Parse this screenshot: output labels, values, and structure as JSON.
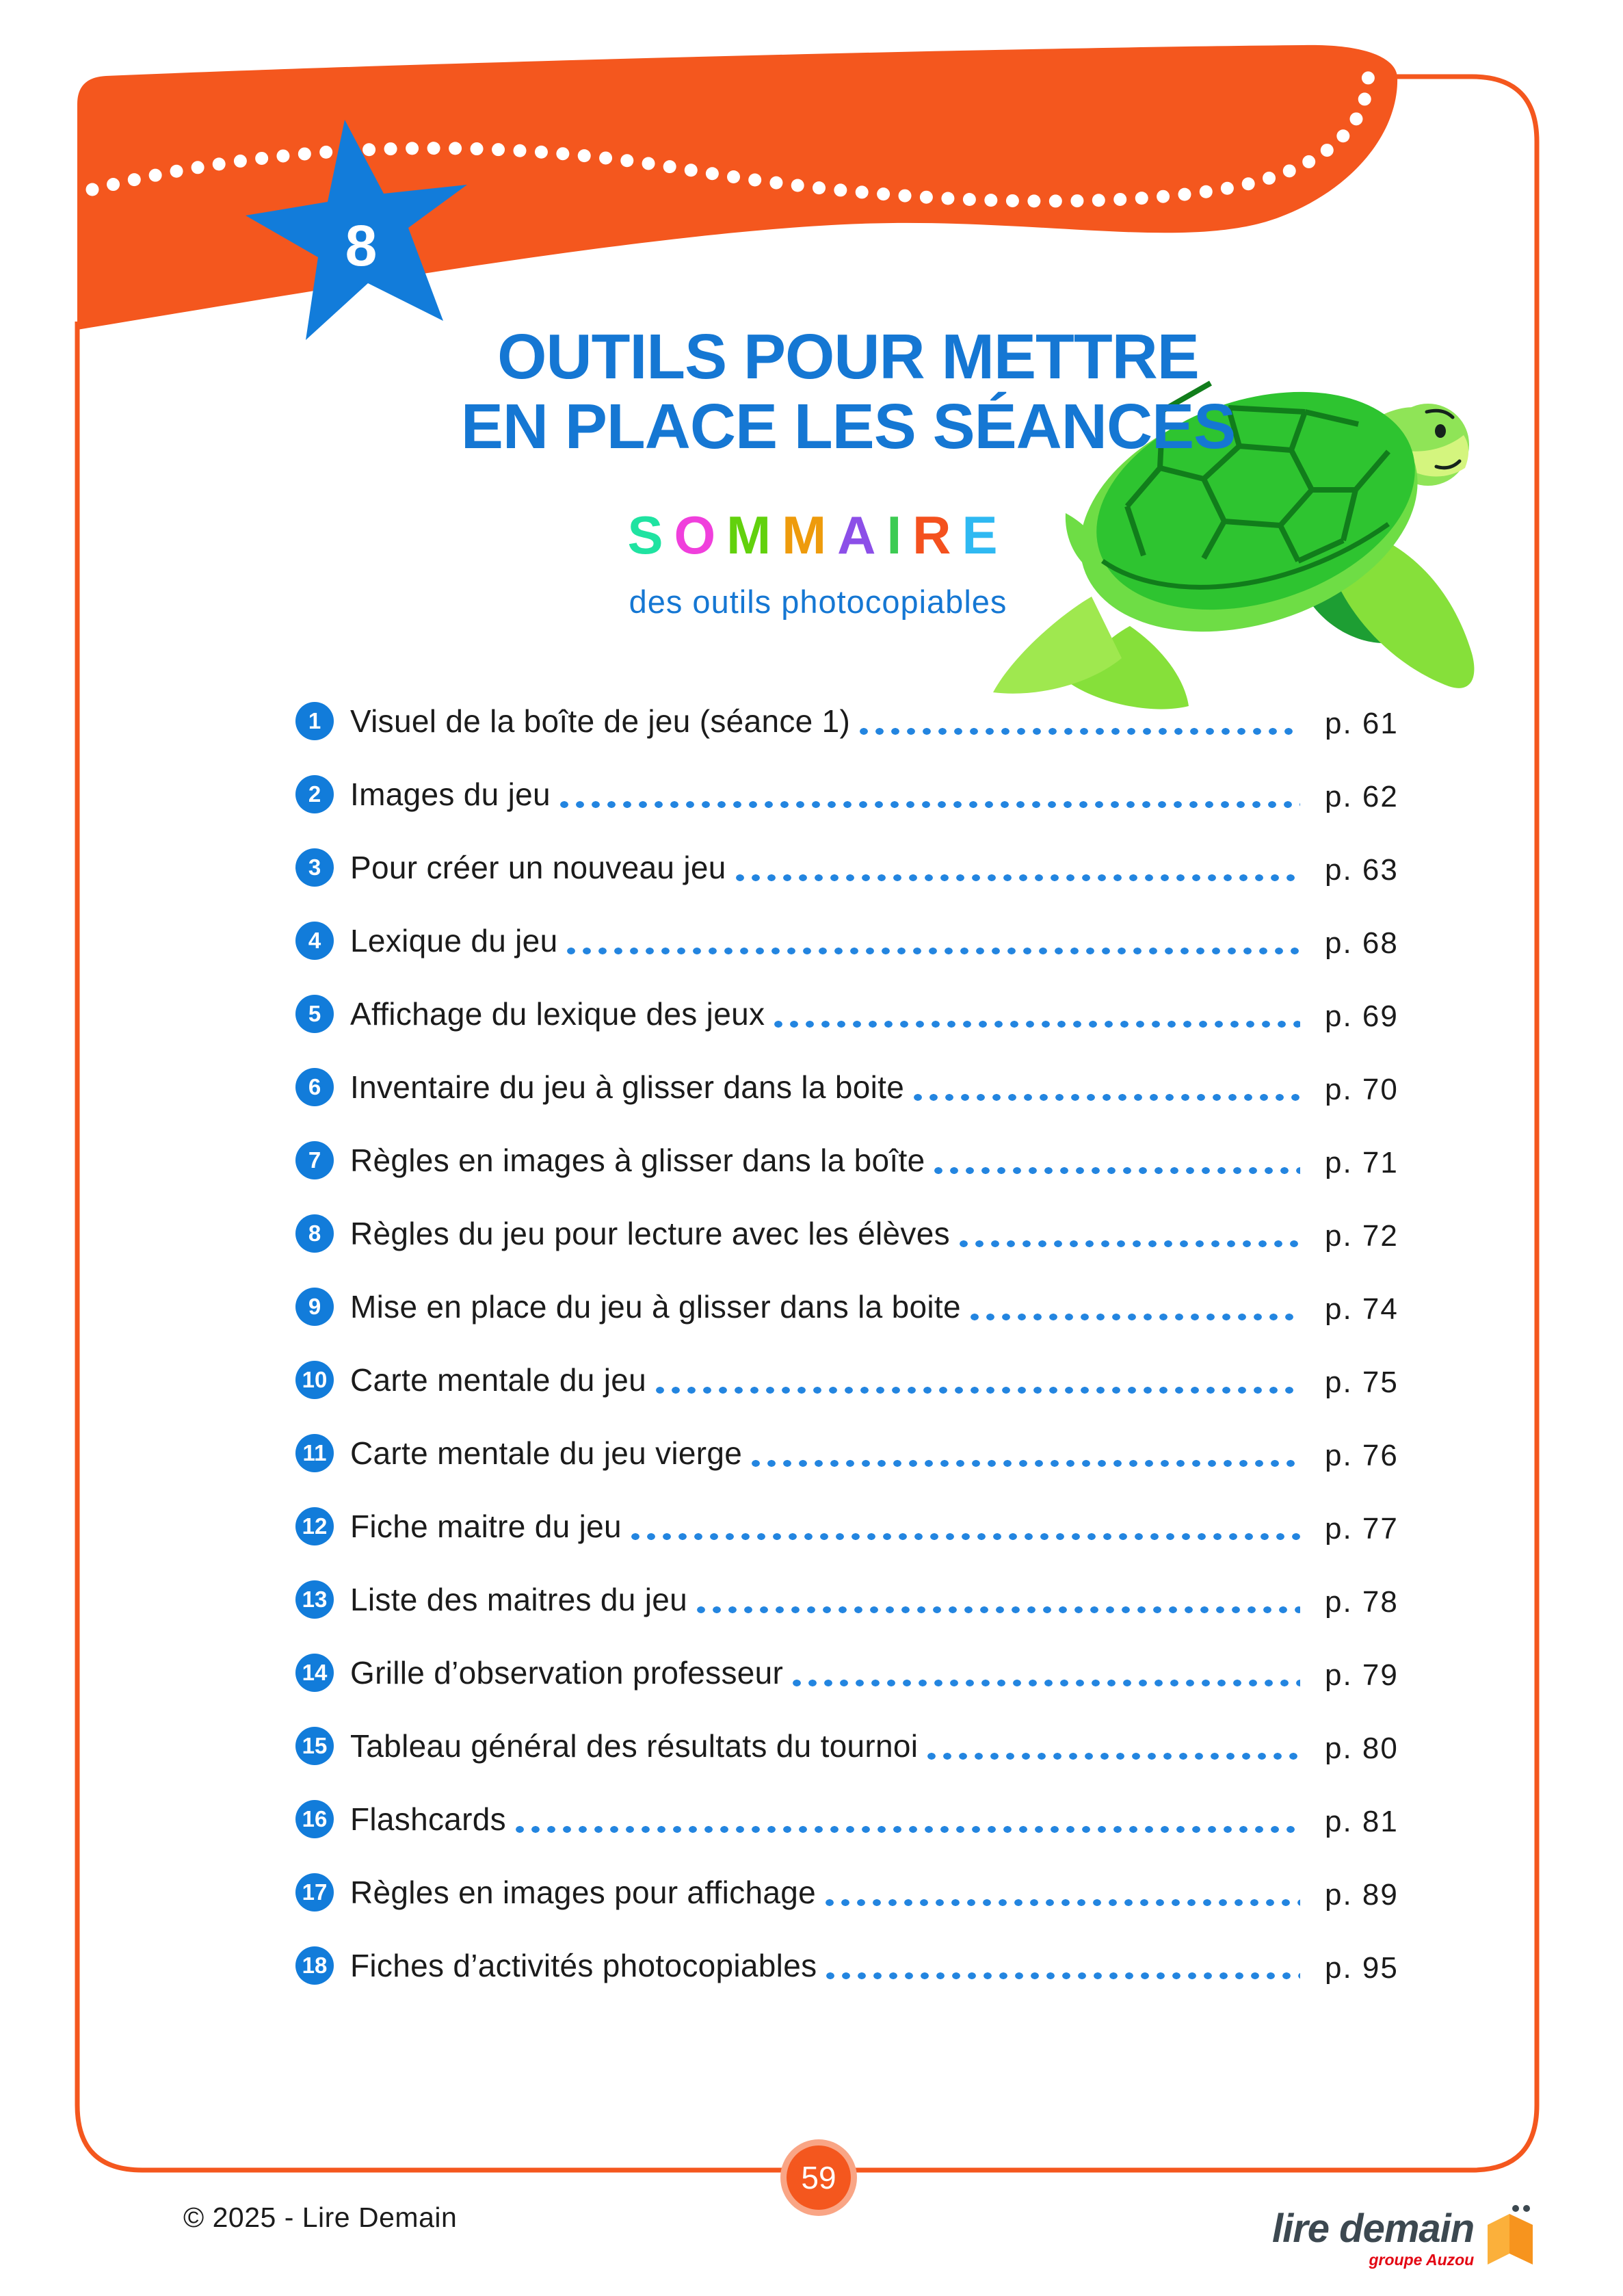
{
  "header": {
    "chapter_number": "8",
    "title_line1": "OUTILS POUR METTRE",
    "title_line2": "EN PLACE LES SÉANCES"
  },
  "sommaire": {
    "title_letters": [
      "S",
      "O",
      "M",
      "M",
      "A",
      "I",
      "R",
      "E"
    ],
    "letter_colors": [
      "#1FE3A1",
      "#F03FDC",
      "#62D10D",
      "#EE9B0C",
      "#8C4FE8",
      "#3DCB53",
      "#F4511E",
      "#2FB9F2"
    ],
    "subtitle": "des outils photocopiables"
  },
  "toc": {
    "items": [
      {
        "num": "1",
        "label": "Visuel de la boîte de jeu (séance 1)",
        "page": "p. 61"
      },
      {
        "num": "2",
        "label": "Images du jeu",
        "page": "p. 62"
      },
      {
        "num": "3",
        "label": "Pour créer un nouveau jeu",
        "page": "p. 63"
      },
      {
        "num": "4",
        "label": "Lexique du jeu",
        "page": "p. 68"
      },
      {
        "num": "5",
        "label": "Affichage du lexique des jeux",
        "page": "p. 69"
      },
      {
        "num": "6",
        "label": "Inventaire du jeu à glisser dans la boite",
        "page": "p. 70"
      },
      {
        "num": "7",
        "label": "Règles en images à glisser dans la boîte",
        "page": "p. 71"
      },
      {
        "num": "8",
        "label": "Règles du jeu pour lecture avec les élèves",
        "page": "p. 72"
      },
      {
        "num": "9",
        "label": "Mise en place du jeu à glisser dans la boite",
        "page": "p. 74"
      },
      {
        "num": "10",
        "label": "Carte mentale du jeu",
        "page": "p. 75"
      },
      {
        "num": "11",
        "label": "Carte mentale du jeu vierge",
        "page": "p. 76"
      },
      {
        "num": "12",
        "label": "Fiche maitre du jeu",
        "page": "p. 77"
      },
      {
        "num": "13",
        "label": "Liste des maitres du jeu",
        "page": "p. 78"
      },
      {
        "num": "14",
        "label": "Grille d’observation professeur",
        "page": "p. 79"
      },
      {
        "num": "15",
        "label": "Tableau général des résultats du tournoi",
        "page": "p. 80"
      },
      {
        "num": "16",
        "label": "Flashcards",
        "page": "p. 81"
      },
      {
        "num": "17",
        "label": "Règles en images pour affichage",
        "page": "p. 89"
      },
      {
        "num": "18",
        "label": "Fiches d’activités photocopiables",
        "page": "p. 95"
      }
    ]
  },
  "footer": {
    "copyright": "© 2025 - Lire Demain",
    "page_number": "59",
    "logo_text": "lire demain",
    "logo_subtext": "groupe Auzou"
  },
  "icons": {
    "star_badge": "blue five-point star with chapter number",
    "turtle_illustration": "green sea turtle",
    "open_book_logo_icon": "orange open book with two dots"
  },
  "colors": {
    "orange": "#F4571E",
    "peach": "#F9A585",
    "blue": "#127CDA",
    "titleblue": "#1577D3",
    "dot": "#2385E0",
    "ink": "#1B1B1B",
    "red": "#E30613",
    "logoink": "#3C4850",
    "bookl": "#FBB03B",
    "bookr": "#F7941E"
  }
}
